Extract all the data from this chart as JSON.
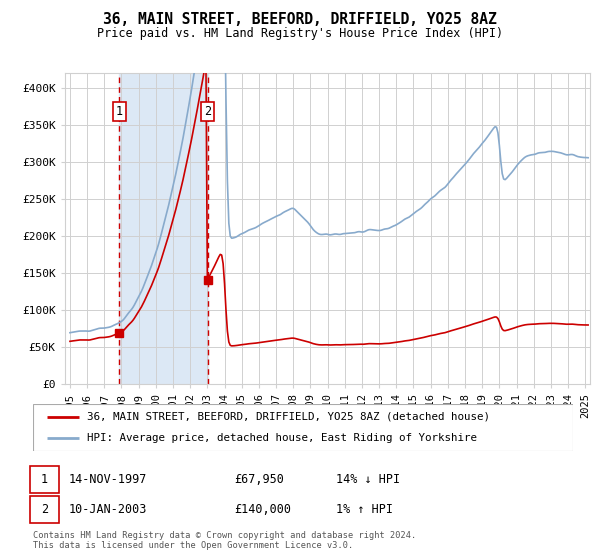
{
  "title": "36, MAIN STREET, BEEFORD, DRIFFIELD, YO25 8AZ",
  "subtitle": "Price paid vs. HM Land Registry's House Price Index (HPI)",
  "ylabel_ticks": [
    "£0",
    "£50K",
    "£100K",
    "£150K",
    "£200K",
    "£250K",
    "£300K",
    "£350K",
    "£400K"
  ],
  "ytick_vals": [
    0,
    50000,
    100000,
    150000,
    200000,
    250000,
    300000,
    350000,
    400000
  ],
  "ylim": [
    0,
    420000
  ],
  "xlim_start": 1994.7,
  "xlim_end": 2025.3,
  "grid_color": "#d0d0d0",
  "sale1_x": 1997.87,
  "sale1_y": 67950,
  "sale2_x": 2003.03,
  "sale2_y": 140000,
  "sale1_label": "1",
  "sale2_label": "2",
  "shade_x0": 1997.87,
  "shade_x1": 2003.03,
  "legend_line1": "36, MAIN STREET, BEEFORD, DRIFFIELD, YO25 8AZ (detached house)",
  "legend_line2": "HPI: Average price, detached house, East Riding of Yorkshire",
  "table_row1": [
    "1",
    "14-NOV-1997",
    "£67,950",
    "14% ↓ HPI"
  ],
  "table_row2": [
    "2",
    "10-JAN-2003",
    "£140,000",
    "1% ↑ HPI"
  ],
  "footer": "Contains HM Land Registry data © Crown copyright and database right 2024.\nThis data is licensed under the Open Government Licence v3.0.",
  "red_color": "#cc0000",
  "blue_color": "#88aacc",
  "shade_color": "#dce8f5"
}
